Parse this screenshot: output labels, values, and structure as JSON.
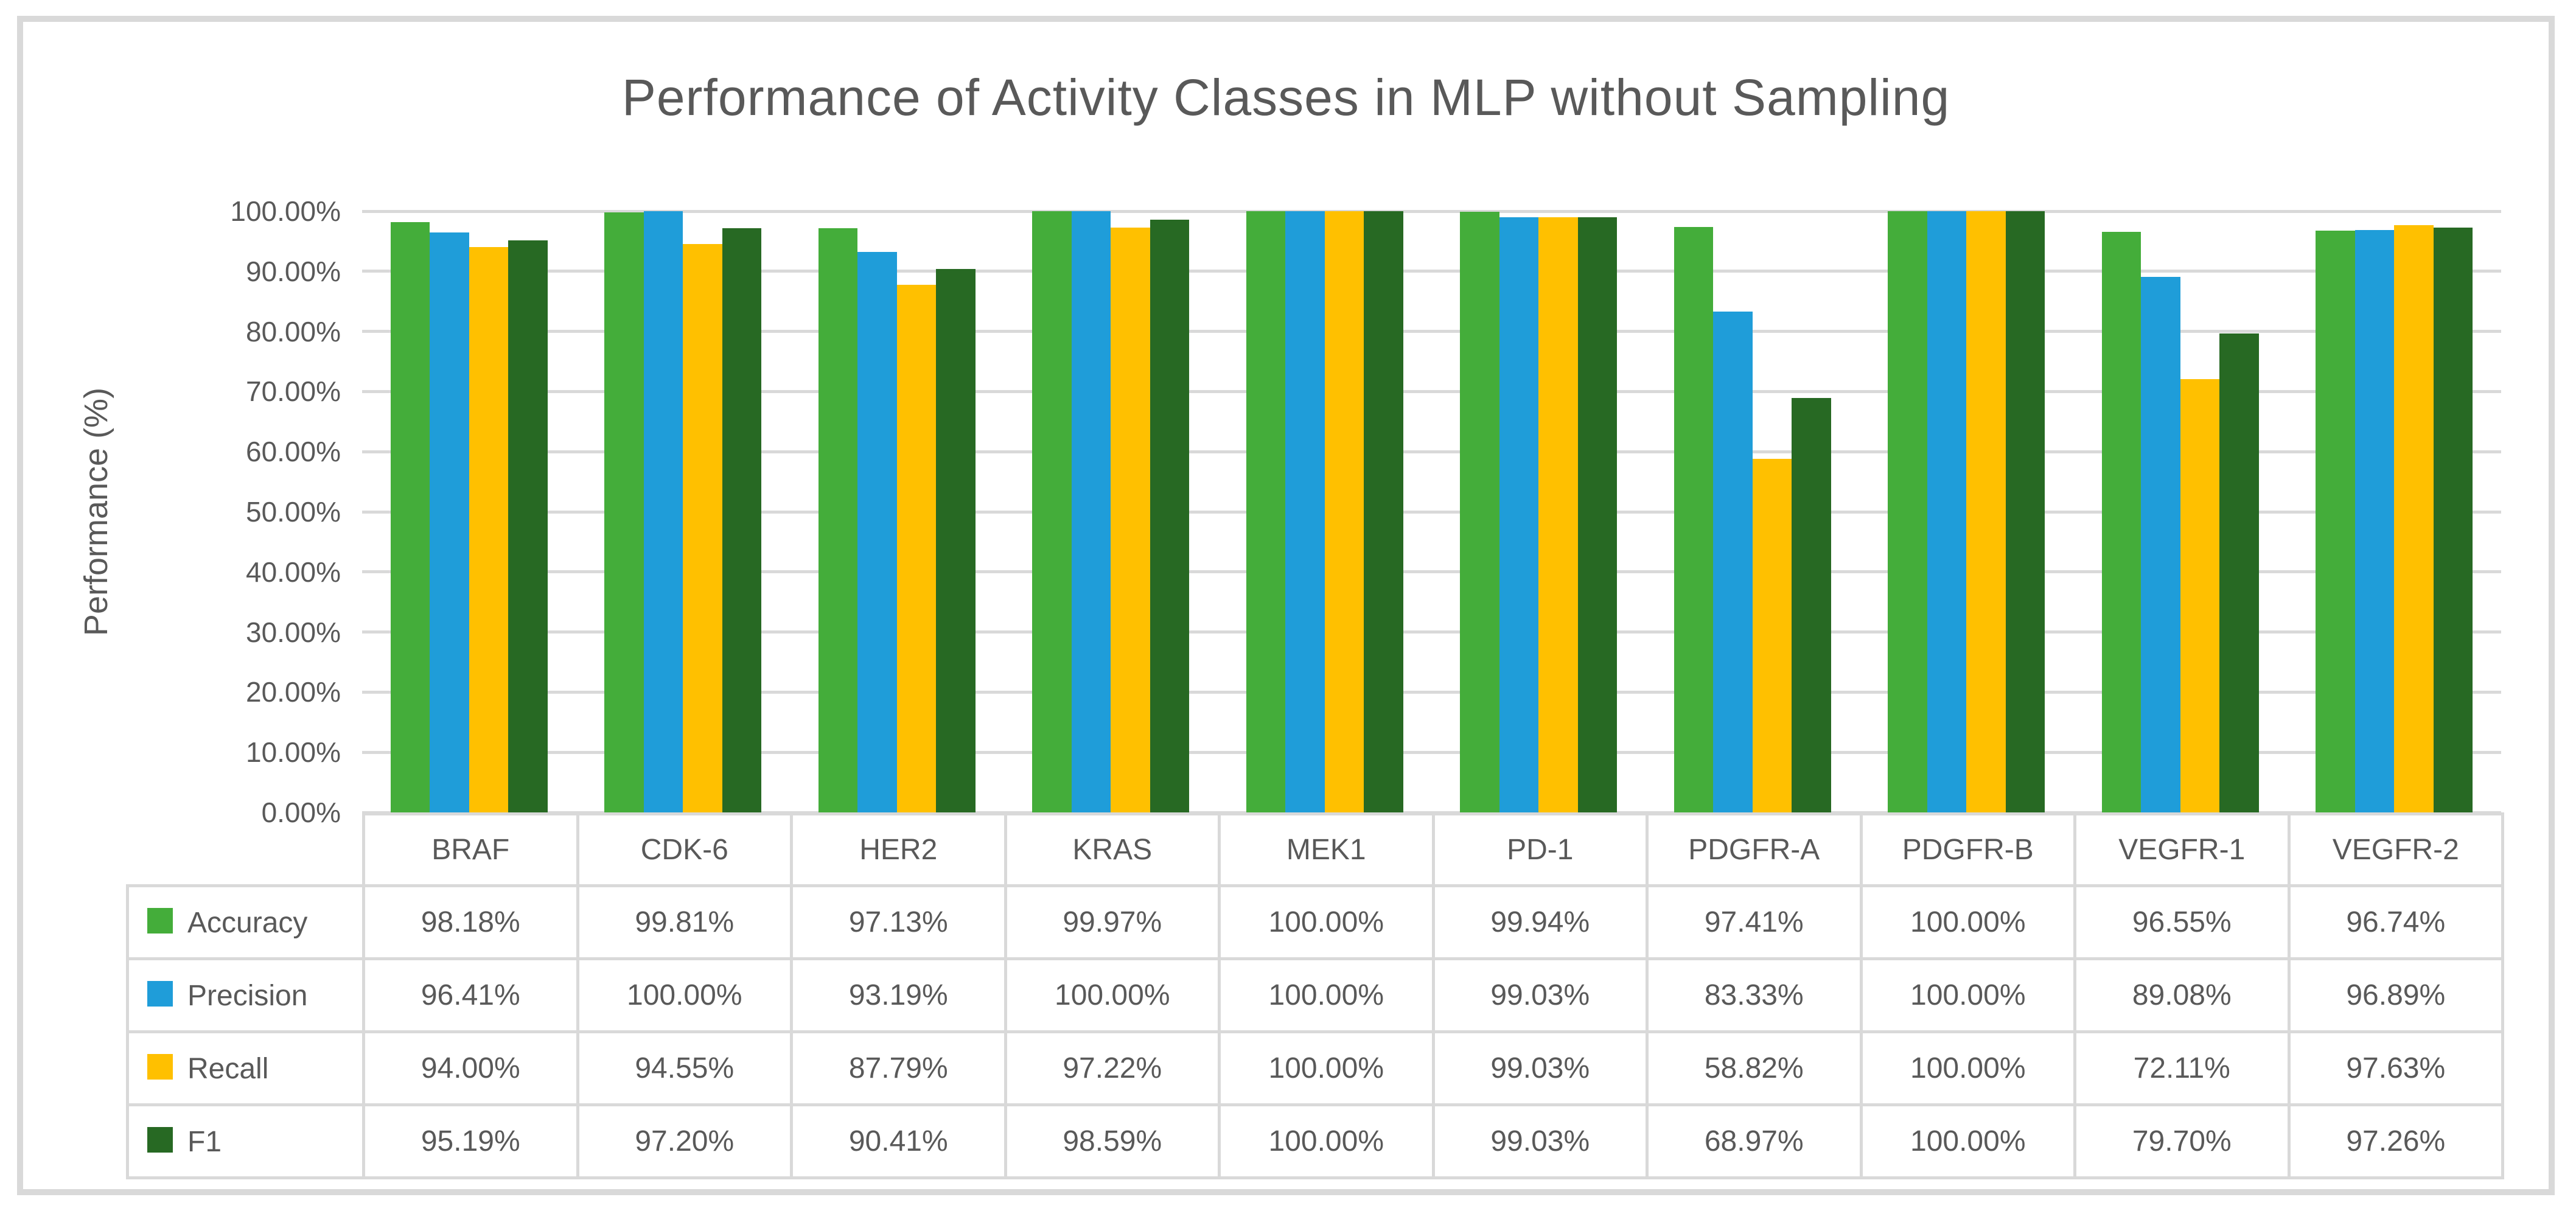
{
  "figure": {
    "title": "Performance of Activity Classes in MLP without Sampling",
    "y_axis_title": "Performance (%)"
  },
  "chart_data": {
    "type": "bar",
    "title": "Performance of Activity Classes in MLP without Sampling",
    "xlabel": "",
    "ylabel": "Performance (%)",
    "ylim": [
      0,
      100
    ],
    "grid": true,
    "legend_position": "data-table-left-column",
    "y_ticks": [
      "100.00%",
      "90.00%",
      "80.00%",
      "70.00%",
      "60.00%",
      "50.00%",
      "40.00%",
      "30.00%",
      "20.00%",
      "10.00%",
      "0.00%"
    ],
    "categories": [
      "BRAF",
      "CDK-6",
      "HER2",
      "KRAS",
      "MEK1",
      "PD-1",
      "PDGFR-A",
      "PDGFR-B",
      "VEGFR-1",
      "VEGFR-2"
    ],
    "series": [
      {
        "name": "Accuracy",
        "color": "#44AD3A",
        "values": [
          98.18,
          99.81,
          97.13,
          99.97,
          100.0,
          99.94,
          97.41,
          100.0,
          96.55,
          96.74
        ]
      },
      {
        "name": "Precision",
        "color": "#1F9DD9",
        "values": [
          96.41,
          100.0,
          93.19,
          100.0,
          100.0,
          99.03,
          83.33,
          100.0,
          89.08,
          96.89
        ]
      },
      {
        "name": "Recall",
        "color": "#FFC000",
        "values": [
          94.0,
          94.55,
          87.79,
          97.22,
          100.0,
          99.03,
          58.82,
          100.0,
          72.11,
          97.63
        ]
      },
      {
        "name": "F1",
        "color": "#276923",
        "values": [
          95.19,
          97.2,
          90.41,
          98.59,
          100.0,
          99.03,
          68.97,
          100.0,
          79.7,
          97.26
        ]
      }
    ],
    "value_format": "percent_2dp"
  },
  "style": {
    "text_color": "#595959",
    "grid_color": "#D9D9D9",
    "frame_border_color": "#D9D9D9",
    "background": "#FFFFFF"
  }
}
